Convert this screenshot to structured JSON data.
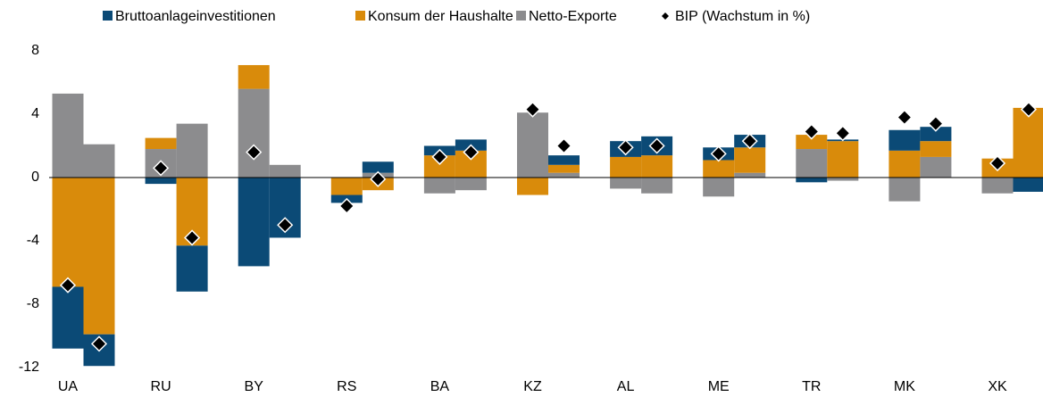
{
  "chart_data": {
    "type": "bar",
    "stacked": true,
    "categories": [
      "UA",
      null,
      "RU",
      null,
      "BY",
      null,
      "RS",
      null,
      "BA",
      null,
      "KZ",
      null,
      "AL",
      null,
      "ME",
      null,
      "TR",
      null,
      "MK",
      null,
      "XK",
      null
    ],
    "series": [
      {
        "name": "Bruttoanlageinvestitionen",
        "color": "#0b4a76",
        "values": [
          -3.9,
          -2.0,
          -0.4,
          -2.9,
          -5.6,
          -3.8,
          -0.5,
          0.7,
          0.6,
          0.7,
          0,
          0.6,
          1.0,
          1.2,
          0.8,
          0.8,
          -0.3,
          0.1,
          1.3,
          0.9,
          0,
          -0.9
        ]
      },
      {
        "name": "Konsum der Haushalte",
        "color": "#d98b0b",
        "values": [
          -6.9,
          -9.9,
          0.7,
          -4.3,
          1.5,
          0,
          -1.1,
          -0.8,
          1.4,
          1.7,
          -1.1,
          0.5,
          1.3,
          1.4,
          1.1,
          1.6,
          0.9,
          2.3,
          1.7,
          1.0,
          1.2,
          4.4
        ]
      },
      {
        "name": "Netto-Exporte",
        "color": "#8c8c8e",
        "values": [
          5.3,
          2.1,
          1.8,
          3.4,
          5.6,
          0.8,
          0,
          0.3,
          -1.0,
          -0.8,
          4.1,
          0.3,
          -0.7,
          -1.0,
          -1.2,
          0.3,
          1.8,
          -0.2,
          -1.5,
          1.3,
          -1.0,
          0
        ]
      },
      {
        "name": "BIP (Wachstum in %)",
        "type": "scatter",
        "marker": "diamond",
        "color": "#000000",
        "values": [
          -6.8,
          -10.5,
          0.6,
          -3.8,
          1.6,
          -3.0,
          -1.8,
          -0.1,
          1.3,
          1.6,
          4.3,
          2.0,
          1.9,
          2.0,
          1.5,
          2.3,
          2.9,
          2.8,
          3.8,
          3.4,
          0.9,
          4.3
        ]
      }
    ],
    "ylim": [
      -12,
      8
    ],
    "yticks": [
      -12,
      -8,
      -4,
      0,
      4,
      8
    ],
    "grid": false,
    "legend": "top"
  }
}
